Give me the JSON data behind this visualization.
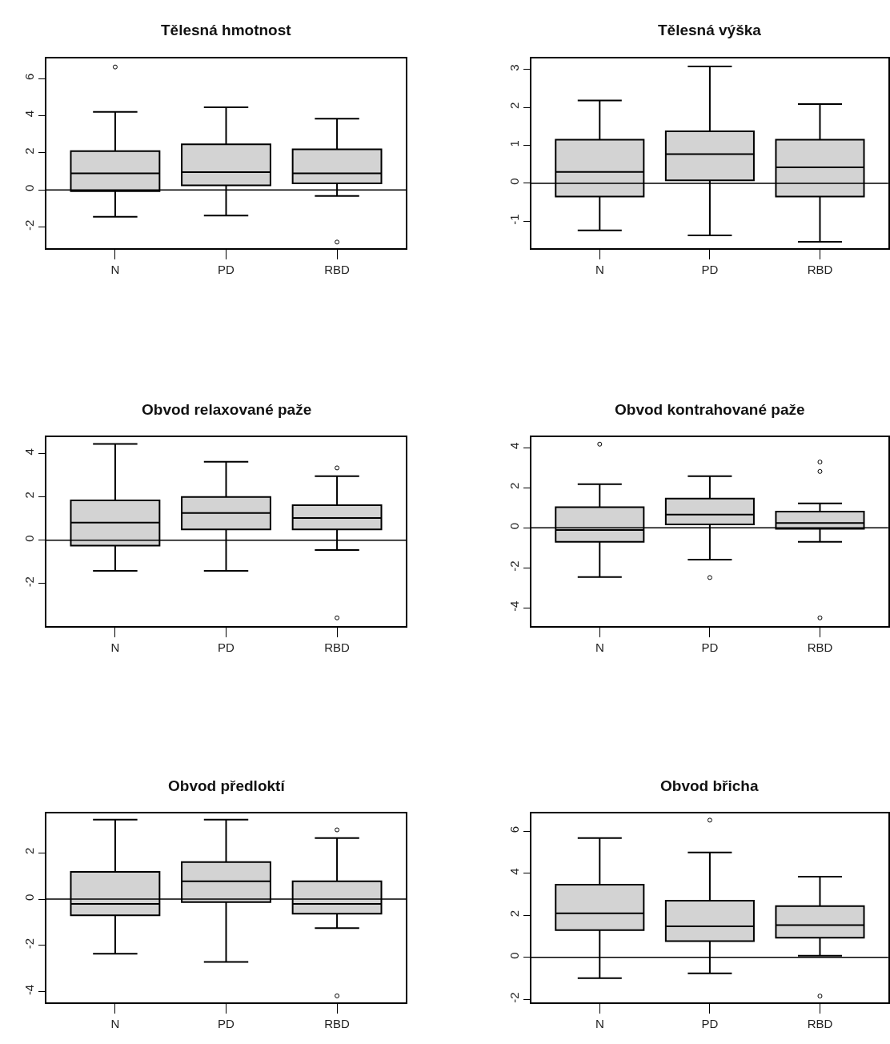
{
  "chart_data": [
    {
      "type": "box",
      "title": "Tělesná hmotnost",
      "categories": [
        "N",
        "PD",
        "RBD"
      ],
      "colors": [
        "#d3d3d3",
        "#d3d3d3",
        "#d3d3d3"
      ],
      "ylim": [
        -3.14,
        7.08
      ],
      "yticks": [
        -2,
        0,
        2,
        4,
        6
      ],
      "grid": false,
      "ref_lines": [
        {
          "axis": "y",
          "value": 0,
          "color": "#000000"
        }
      ],
      "marker": "circle",
      "boxes": [
        {
          "low": -1.45,
          "q1": -0.07,
          "median": 0.89,
          "q3": 2.09,
          "high": 4.2,
          "outliers": [
            6.62
          ]
        },
        {
          "low": -1.38,
          "q1": 0.24,
          "median": 0.96,
          "q3": 2.45,
          "high": 4.45
        },
        {
          "low": -0.33,
          "q1": 0.35,
          "median": 0.89,
          "q3": 2.19,
          "high": 3.84,
          "outliers": [
            -2.81
          ]
        }
      ]
    },
    {
      "type": "box",
      "title": "Tělesná výška",
      "categories": [
        "N",
        "PD",
        "RBD"
      ],
      "colors": [
        "#d3d3d3",
        "#d3d3d3",
        "#d3d3d3"
      ],
      "ylim": [
        -1.71,
        3.29
      ],
      "yticks": [
        -1,
        0,
        1,
        2,
        3
      ],
      "grid": false,
      "ref_lines": [
        {
          "axis": "y",
          "value": 0,
          "color": "#000000"
        }
      ],
      "boxes": [
        {
          "low": -1.24,
          "q1": -0.35,
          "median": 0.3,
          "q3": 1.15,
          "high": 2.18
        },
        {
          "low": -1.37,
          "q1": 0.08,
          "median": 0.77,
          "q3": 1.37,
          "high": 3.08
        },
        {
          "low": -1.54,
          "q1": -0.35,
          "median": 0.42,
          "q3": 1.15,
          "high": 2.09
        }
      ]
    },
    {
      "type": "box",
      "title": "Obvod relaxované paže",
      "categories": [
        "N",
        "PD",
        "RBD"
      ],
      "colors": [
        "#d3d3d3",
        "#d3d3d3",
        "#d3d3d3"
      ],
      "ylim": [
        -3.96,
        4.76
      ],
      "yticks": [
        -2,
        0,
        2,
        4
      ],
      "grid": false,
      "ref_lines": [
        {
          "axis": "y",
          "value": 0,
          "color": "#000000"
        }
      ],
      "marker": "circle",
      "boxes": [
        {
          "low": -1.41,
          "q1": -0.25,
          "median": 0.82,
          "q3": 1.84,
          "high": 4.45
        },
        {
          "low": -1.41,
          "q1": 0.5,
          "median": 1.26,
          "q3": 2.0,
          "high": 3.62
        },
        {
          "low": -0.45,
          "q1": 0.5,
          "median": 1.03,
          "q3": 1.62,
          "high": 2.96,
          "outliers": [
            3.34,
            -3.58
          ]
        }
      ]
    },
    {
      "type": "box",
      "title": "Obvod kontrahované paže",
      "categories": [
        "N",
        "PD",
        "RBD"
      ],
      "colors": [
        "#d3d3d3",
        "#d3d3d3",
        "#d3d3d3"
      ],
      "ylim": [
        -4.9,
        4.52
      ],
      "yticks": [
        -4,
        -2,
        0,
        2,
        4
      ],
      "grid": false,
      "ref_lines": [
        {
          "axis": "y",
          "value": 0,
          "color": "#000000"
        }
      ],
      "marker": "circle",
      "boxes": [
        {
          "low": -2.46,
          "q1": -0.7,
          "median": -0.11,
          "q3": 1.03,
          "high": 2.17,
          "outliers": [
            4.17
          ]
        },
        {
          "low": -1.59,
          "q1": 0.17,
          "median": 0.66,
          "q3": 1.46,
          "high": 2.57,
          "outliers": [
            -2.48
          ]
        },
        {
          "low": -0.7,
          "q1": -0.05,
          "median": 0.24,
          "q3": 0.81,
          "high": 1.22,
          "outliers": [
            3.28,
            2.81,
            -4.49
          ]
        }
      ]
    },
    {
      "type": "box",
      "title": "Obvod předloktí",
      "categories": [
        "N",
        "PD",
        "RBD"
      ],
      "colors": [
        "#d3d3d3",
        "#d3d3d3",
        "#d3d3d3"
      ],
      "ylim": [
        -4.46,
        3.7
      ],
      "yticks": [
        -4,
        -2,
        0,
        2
      ],
      "grid": false,
      "ref_lines": [
        {
          "axis": "y",
          "value": 0,
          "color": "#000000"
        }
      ],
      "marker": "circle",
      "boxes": [
        {
          "low": -2.36,
          "q1": -0.7,
          "median": -0.21,
          "q3": 1.18,
          "high": 3.43
        },
        {
          "low": -2.71,
          "q1": -0.13,
          "median": 0.77,
          "q3": 1.6,
          "high": 3.43
        },
        {
          "low": -1.25,
          "q1": -0.63,
          "median": -0.21,
          "q3": 0.77,
          "high": 2.64,
          "outliers": [
            2.99,
            -4.18
          ]
        }
      ]
    },
    {
      "type": "box",
      "title": "Obvod břicha",
      "categories": [
        "N",
        "PD",
        "RBD"
      ],
      "colors": [
        "#d3d3d3",
        "#d3d3d3",
        "#d3d3d3"
      ],
      "ylim": [
        -2.14,
        6.85
      ],
      "yticks": [
        -2,
        0,
        2,
        4,
        6
      ],
      "grid": false,
      "ref_lines": [
        {
          "axis": "y",
          "value": 0,
          "color": "#000000"
        }
      ],
      "marker": "circle",
      "boxes": [
        {
          "low": -0.99,
          "q1": 1.3,
          "median": 2.1,
          "q3": 3.46,
          "high": 5.68
        },
        {
          "low": -0.76,
          "q1": 0.77,
          "median": 1.48,
          "q3": 2.7,
          "high": 4.99,
          "outliers": [
            6.53
          ]
        },
        {
          "low": 0.08,
          "q1": 0.94,
          "median": 1.54,
          "q3": 2.44,
          "high": 3.84,
          "outliers": [
            -1.84
          ]
        }
      ]
    }
  ]
}
